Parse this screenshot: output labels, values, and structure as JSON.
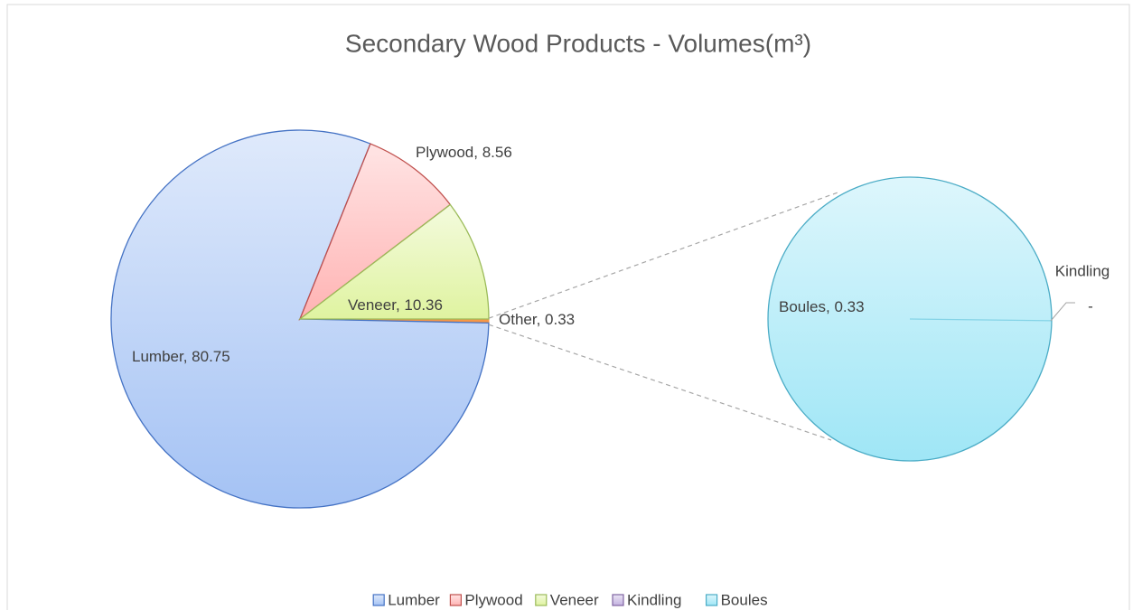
{
  "chart_data": {
    "type": "pie-of-pie",
    "title": "Secondary Wood Products - Volumes(m³)",
    "categories": [
      "Lumber",
      "Plywood",
      "Veneer",
      "Kindling",
      "Boules"
    ],
    "values": [
      80.75,
      8.56,
      10.36,
      0,
      0.33
    ],
    "value_labels": [
      "80.75",
      "8.56",
      "10.36",
      "-",
      "0.33"
    ],
    "colors": [
      "#a4c2f4",
      "#ffb3b3",
      "#dff3a0",
      "#c3b2e0",
      "#9fe6f6"
    ],
    "edge_colors": [
      "#4472c4",
      "#c0504d",
      "#9bbb59",
      "#8064a2",
      "#4bacc6"
    ],
    "secondary_count": 2,
    "other": {
      "label": "Other",
      "value": 0.33,
      "color": "#f79646"
    },
    "label_separator": ", ",
    "legend": "bottom"
  }
}
